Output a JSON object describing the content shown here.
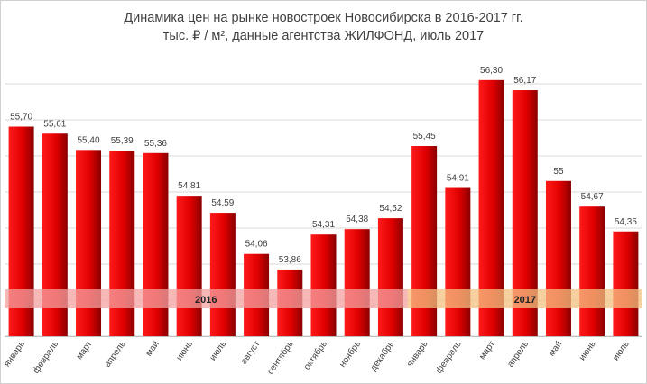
{
  "chart_data": {
    "type": "bar",
    "title": "Динамика цен на рынке новостроек Новосибирска в 2016-2017 гг.",
    "subtitle": "тыс. ₽ / м², данные агентства ЖИЛФОНД, июль 2017",
    "categories": [
      "январь",
      "февраль",
      "март",
      "апрель",
      "май",
      "июнь",
      "июль",
      "август",
      "сентябрь",
      "октябрь",
      "ноябрь",
      "декабрь",
      "январь",
      "февраль",
      "март",
      "апрель",
      "май",
      "июнь",
      "июль"
    ],
    "values": [
      55.7,
      55.61,
      55.4,
      55.39,
      55.36,
      54.81,
      54.59,
      54.06,
      53.86,
      54.31,
      54.38,
      54.52,
      55.45,
      54.91,
      56.3,
      56.17,
      55.0,
      54.67,
      54.35
    ],
    "value_labels": [
      "55,70",
      "55,61",
      "55,40",
      "55,39",
      "55,36",
      "54,81",
      "54,59",
      "54,06",
      "53,86",
      "54,31",
      "54,38",
      "54,52",
      "55,45",
      "54,91",
      "56,30",
      "56,17",
      "55",
      "54,67",
      "54,35"
    ],
    "ylim": [
      53.0,
      56.6
    ],
    "grid": true,
    "bar_color": "#e00000",
    "year_bands": [
      {
        "label": "2016",
        "from": 0,
        "to": 11,
        "color": "#f4a0a0"
      },
      {
        "label": "2017",
        "from": 12,
        "to": 18,
        "color": "#f4c080"
      }
    ]
  }
}
